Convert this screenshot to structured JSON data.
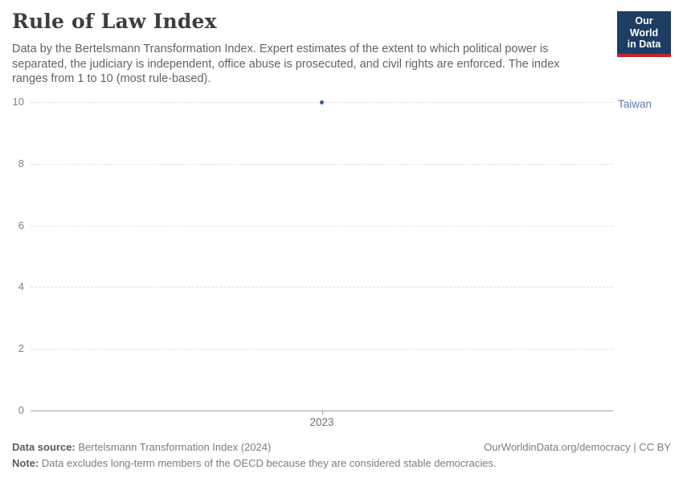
{
  "header": {
    "title": "Rule of Law Index",
    "subtitle": "Data by the Bertelsmann Transformation Index. Expert estimates of the extent to which political power is separated, the judiciary is independent, office abuse is prosecuted, and civil rights are enforced. The index ranges from 1 to 10 (most rule-based).",
    "logo": {
      "line1": "Our World",
      "line2": "in Data"
    }
  },
  "chart_data": {
    "type": "scatter",
    "title": "Rule of Law Index",
    "x_ticks": [
      "2023"
    ],
    "y_ticks": [
      0,
      2,
      4,
      6,
      8,
      10
    ],
    "ylim": [
      0,
      10
    ],
    "grid": "horizontal-dashed",
    "legend_position": "right-of-point",
    "series": [
      {
        "name": "Taiwan",
        "points": [
          {
            "x": "2023",
            "y": 10
          }
        ]
      }
    ]
  },
  "colors": {
    "point": "#3d5a8a",
    "entity_label": "#5b7bac",
    "logo_navy": "#1d3d63",
    "logo_red": "#c0272d",
    "gridline": "#e0e0e0",
    "axis": "#a3a3a3"
  },
  "footer": {
    "source_label": "Data source:",
    "source_value": "Bertelsmann Transformation Index (2024)",
    "attribution": "OurWorldinData.org/democracy | CC BY",
    "note_label": "Note:",
    "note_value": "Data excludes long-term members of the OECD because they are considered stable democracies."
  }
}
